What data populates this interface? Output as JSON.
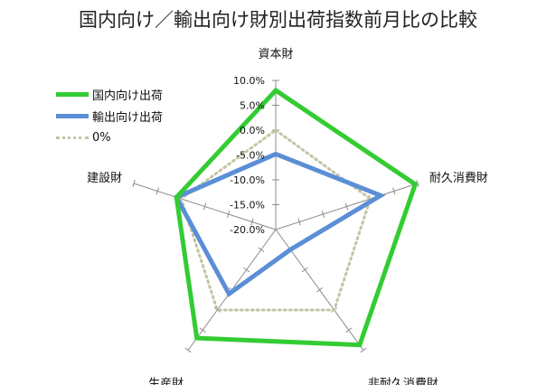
{
  "chart_data": {
    "type": "radar",
    "title": "国内向け／輸出向け財別出荷指数前月比の比較",
    "categories": [
      "資本財",
      "耐久消費財",
      "非耐久消費財",
      "生産財",
      "建設財"
    ],
    "ticks": [
      "10.0%",
      "5.0%",
      "0.0%",
      "-5.0%",
      "-10.0%",
      "-15.0%",
      "-20.0%"
    ],
    "rmin": -20,
    "rmax": 10,
    "series": [
      {
        "name": "国内向け出荷",
        "values": [
          8.0,
          9.5,
          8.7,
          7.0,
          1.0
        ],
        "color": "#33cc33"
      },
      {
        "name": "輸出向け出荷",
        "values": [
          -4.8,
          2.2,
          -15.0,
          -4.0,
          1.0
        ],
        "color": "#5b8ed6"
      },
      {
        "name": "0%",
        "values": [
          0,
          0,
          0,
          0,
          0
        ],
        "color": "#c4c4a4"
      }
    ]
  }
}
